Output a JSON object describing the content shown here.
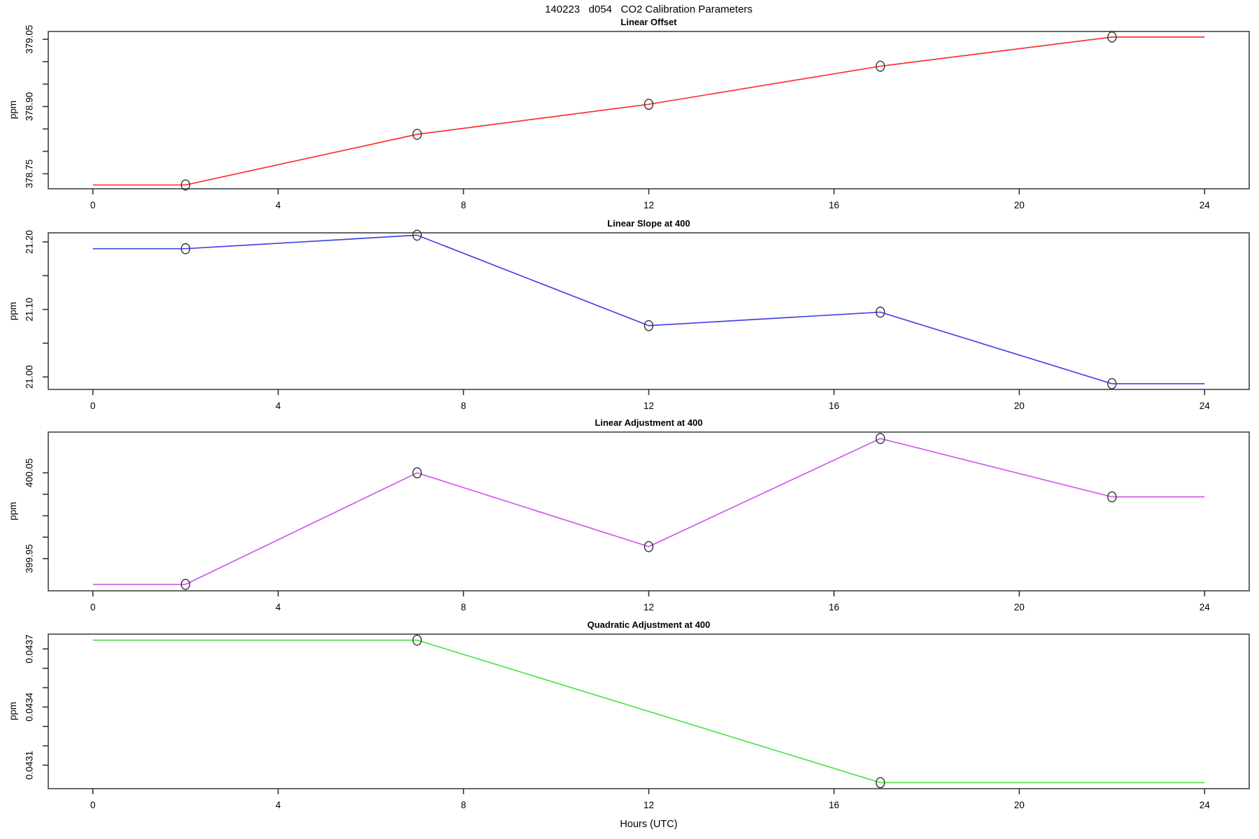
{
  "figure": {
    "title": "140223   d054   CO2 Calibration Parameters",
    "xlabel": "Hours (UTC)",
    "xlim": [
      -0.963,
      24.963
    ],
    "x_ticks": [
      {
        "v": 0,
        "label": "0"
      },
      {
        "v": 4,
        "label": "4"
      },
      {
        "v": 8,
        "label": "8"
      },
      {
        "v": 12,
        "label": "12"
      },
      {
        "v": 16,
        "label": "16"
      },
      {
        "v": 20,
        "label": "20"
      },
      {
        "v": 24,
        "label": "24"
      }
    ],
    "grid": "off",
    "legend": "none",
    "background": "#ffffff",
    "axis_color": "#333333",
    "border_color": "#4d4d4d",
    "marker_color": "#333333"
  },
  "chart_data": [
    {
      "type": "line",
      "title": "Linear Offset",
      "ylabel": "ppm",
      "color": "#ff3232",
      "marker": "open-circle",
      "ylim": [
        378.7165,
        379.0675
      ],
      "y_ticks": [
        {
          "v": 378.75,
          "label": "378.75"
        },
        {
          "v": 378.8
        },
        {
          "v": 378.85
        },
        {
          "v": 378.9,
          "label": "378.90"
        },
        {
          "v": 378.95
        },
        {
          "v": 379.0
        },
        {
          "v": 379.05,
          "label": "379.05"
        }
      ],
      "line": {
        "x": [
          0,
          2,
          7,
          12,
          17,
          22,
          24
        ],
        "y": [
          378.725,
          378.725,
          378.838,
          378.905,
          378.99,
          379.055,
          379.055
        ]
      },
      "points": {
        "x": [
          2,
          7,
          12,
          17,
          22
        ],
        "y": [
          378.725,
          378.838,
          378.905,
          378.99,
          379.055
        ]
      }
    },
    {
      "type": "line",
      "title": "Linear Slope at 400",
      "ylabel": "ppm",
      "color": "#4444e6",
      "marker": "open-circle",
      "ylim": [
        20.9815,
        21.2135
      ],
      "y_ticks": [
        {
          "v": 21.0,
          "label": "21.00"
        },
        {
          "v": 21.05
        },
        {
          "v": 21.1,
          "label": "21.10"
        },
        {
          "v": 21.15
        },
        {
          "v": 21.2,
          "label": "21.20"
        }
      ],
      "line": {
        "x": [
          0,
          2,
          7,
          12,
          17,
          22,
          24
        ],
        "y": [
          21.19,
          21.19,
          21.21,
          21.076,
          21.096,
          20.99,
          20.99
        ]
      },
      "points": {
        "x": [
          2,
          7,
          12,
          17,
          22
        ],
        "y": [
          21.19,
          21.21,
          21.076,
          21.096,
          20.99
        ]
      }
    },
    {
      "type": "line",
      "title": "Linear Adjustment at 400",
      "ylabel": "ppm",
      "color": "#cf5ce8",
      "marker": "open-circle",
      "ylim": [
        399.9125,
        400.0975
      ],
      "y_ticks": [
        {
          "v": 399.95,
          "label": "399.95"
        },
        {
          "v": 399.975
        },
        {
          "v": 400.0
        },
        {
          "v": 400.025
        },
        {
          "v": 400.05,
          "label": "400.05"
        }
      ],
      "line": {
        "x": [
          0,
          2,
          7,
          12,
          17,
          22,
          24
        ],
        "y": [
          399.92,
          399.92,
          400.05,
          399.964,
          400.09,
          400.022,
          400.022
        ]
      },
      "points": {
        "x": [
          2,
          7,
          12,
          17,
          22
        ],
        "y": [
          399.92,
          400.05,
          399.964,
          400.09,
          400.022
        ]
      }
    },
    {
      "type": "line",
      "title": "Quadratic Adjustment at 400",
      "ylabel": "ppm",
      "color": "#52e052",
      "marker": "open-circle",
      "ylim": [
        0.042979,
        0.043776
      ],
      "y_ticks": [
        {
          "v": 0.0431,
          "label": "0.0431"
        },
        {
          "v": 0.0432
        },
        {
          "v": 0.0433
        },
        {
          "v": 0.0434,
          "label": "0.0434"
        },
        {
          "v": 0.0435
        },
        {
          "v": 0.0436
        },
        {
          "v": 0.0437,
          "label": "0.0437"
        }
      ],
      "line": {
        "x": [
          0,
          7,
          17,
          24
        ],
        "y": [
          0.043745,
          0.043745,
          0.04301,
          0.04301
        ]
      },
      "points": {
        "x": [
          7,
          17
        ],
        "y": [
          0.043745,
          0.04301
        ]
      }
    }
  ]
}
